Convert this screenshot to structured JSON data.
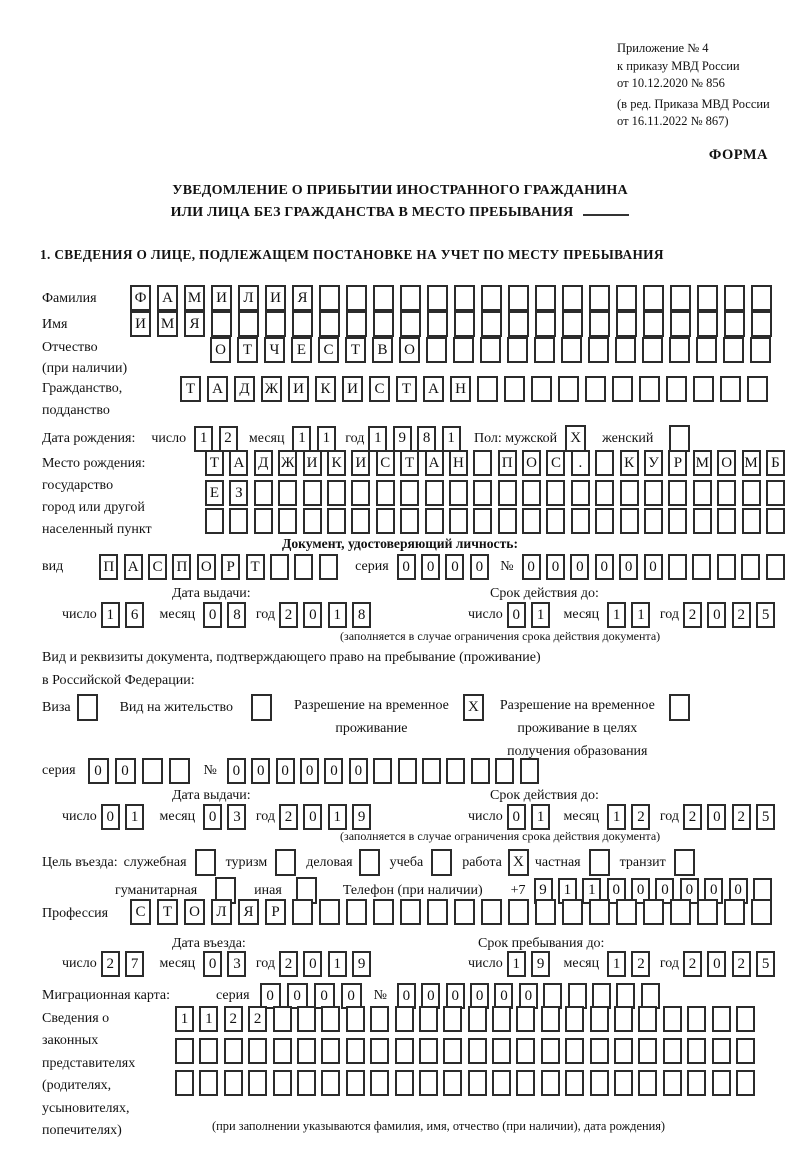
{
  "header": {
    "lines": [
      "Приложение № 4",
      "к приказу МВД России",
      "от 10.12.2020 № 856",
      "(в ред. Приказа МВД России",
      "от 16.11.2022 № 867)"
    ],
    "form_label": "ФОРМА"
  },
  "title": {
    "line1": "УВЕДОМЛЕНИЕ О ПРИБЫТИИ ИНОСТРАННОГО ГРАЖДАНИНА",
    "line2": "ИЛИ ЛИЦА БЕЗ ГРАЖДАНСТВА В МЕСТО ПРЕБЫВАНИЯ"
  },
  "section1_heading": "1. СВЕДЕНИЯ О ЛИЦЕ, ПОДЛЕЖАЩЕМ ПОСТАНОВКЕ НА УЧЕТ ПО МЕСТУ ПРЕБЫВАНИЯ",
  "words": {
    "day": "число",
    "month": "месяц",
    "year": "год",
    "series": "серия",
    "num": "№",
    "issue_heading": "Дата выдачи:",
    "valid_heading": "Срок действия до:",
    "restriction_note": "(заполняется в случае ограничения срока действия документа)"
  },
  "surname": {
    "label": "Фамилия",
    "cells": [
      "Ф",
      "А",
      "М",
      "И",
      "Л",
      "И",
      "Я",
      "",
      "",
      "",
      "",
      "",
      "",
      "",
      "",
      "",
      "",
      "",
      "",
      "",
      "",
      "",
      "",
      ""
    ]
  },
  "given_name": {
    "label": "Имя",
    "cells": [
      "И",
      "М",
      "Я",
      "",
      "",
      "",
      "",
      "",
      "",
      "",
      "",
      "",
      "",
      "",
      "",
      "",
      "",
      "",
      "",
      "",
      "",
      "",
      "",
      ""
    ]
  },
  "patronymic": {
    "label": "Отчество",
    "label2": "(при наличии)",
    "cells": [
      "О",
      "Т",
      "Ч",
      "Е",
      "С",
      "Т",
      "В",
      "О",
      "",
      "",
      "",
      "",
      "",
      "",
      "",
      "",
      "",
      "",
      "",
      "",
      ""
    ]
  },
  "citizenship": {
    "label": "Гражданство,",
    "label2": "подданство",
    "cells": [
      "Т",
      "А",
      "Д",
      "Ж",
      "И",
      "К",
      "И",
      "С",
      "Т",
      "А",
      "Н",
      "",
      "",
      "",
      "",
      "",
      "",
      "",
      "",
      "",
      "",
      ""
    ]
  },
  "birth": {
    "label": "Дата рождения:",
    "day": [
      "1",
      "2"
    ],
    "month": [
      "1",
      "1"
    ],
    "year": [
      "1",
      "9",
      "8",
      "1"
    ],
    "sex_label": "Пол: мужской",
    "male": "X",
    "female_label": "женский",
    "female": ""
  },
  "birth_place": {
    "label_lines": [
      "Место рождения:",
      "государство",
      "город или другой",
      "населенный пункт"
    ],
    "rows": [
      [
        "Т",
        "А",
        "Д",
        "Ж",
        "И",
        "К",
        "И",
        "С",
        "Т",
        "А",
        "Н",
        "",
        "П",
        "О",
        "С",
        ".",
        "",
        "К",
        "У",
        "Р",
        "М",
        "О",
        "М",
        "Б"
      ],
      [
        "Е",
        "З",
        "",
        "",
        "",
        "",
        "",
        "",
        "",
        "",
        "",
        "",
        "",
        "",
        "",
        "",
        "",
        "",
        "",
        "",
        "",
        "",
        "",
        ""
      ],
      [
        "",
        "",
        "",
        "",
        "",
        "",
        "",
        "",
        "",
        "",
        "",
        "",
        "",
        "",
        "",
        "",
        "",
        "",
        "",
        "",
        "",
        "",
        "",
        ""
      ]
    ]
  },
  "identity_doc": {
    "heading": "Документ, удостоверяющий личность:",
    "type_label": "вид",
    "type_cells": [
      "П",
      "А",
      "С",
      "П",
      "О",
      "Р",
      "Т",
      "",
      "",
      ""
    ],
    "series": [
      "0",
      "0",
      "0",
      "0"
    ],
    "number": [
      "0",
      "0",
      "0",
      "0",
      "0",
      "0",
      "",
      "",
      "",
      "",
      ""
    ],
    "issue": {
      "day": [
        "1",
        "6"
      ],
      "month": [
        "0",
        "8"
      ],
      "year": [
        "2",
        "0",
        "1",
        "8"
      ]
    },
    "valid": {
      "day": [
        "0",
        "1"
      ],
      "month": [
        "1",
        "1"
      ],
      "year": [
        "2",
        "0",
        "2",
        "5"
      ]
    }
  },
  "residence_doc": {
    "line1": "Вид и реквизиты документа, подтверждающего право на пребывание (проживание)",
    "line2": "в Российской Федерации:",
    "options": [
      {
        "label": "Виза",
        "value": ""
      },
      {
        "label": "Вид на жительство",
        "value": ""
      },
      {
        "label": "Разрешение на временное",
        "label2": "проживание",
        "value": "X"
      },
      {
        "label": "Разрешение на временное",
        "label2": "проживание в целях",
        "label3": "получения образования",
        "value": ""
      }
    ],
    "series": [
      "0",
      "0",
      "",
      ""
    ],
    "number": [
      "0",
      "0",
      "0",
      "0",
      "0",
      "0",
      "",
      "",
      "",
      "",
      "",
      "",
      ""
    ],
    "issue": {
      "day": [
        "0",
        "1"
      ],
      "month": [
        "0",
        "3"
      ],
      "year": [
        "2",
        "0",
        "1",
        "9"
      ]
    },
    "valid": {
      "day": [
        "0",
        "1"
      ],
      "month": [
        "1",
        "2"
      ],
      "year": [
        "2",
        "0",
        "2",
        "5"
      ]
    }
  },
  "purpose": {
    "label": "Цель въезда:",
    "options": [
      {
        "label": "служебная",
        "value": ""
      },
      {
        "label": "туризм",
        "value": ""
      },
      {
        "label": "деловая",
        "value": ""
      },
      {
        "label": "учеба",
        "value": ""
      },
      {
        "label": "работа",
        "value": "X"
      },
      {
        "label": "частная",
        "value": ""
      },
      {
        "label": "транзит",
        "value": ""
      },
      {
        "label": "гуманитарная",
        "value": ""
      },
      {
        "label": "иная",
        "value": ""
      }
    ],
    "phone_label": "Телефон (при наличии)",
    "phone_prefix": "+7",
    "phone_cells": [
      "9",
      "1",
      "1",
      "0",
      "0",
      "0",
      "0",
      "0",
      "0",
      ""
    ]
  },
  "profession": {
    "label": "Профессия",
    "cells": [
      "С",
      "Т",
      "О",
      "Л",
      "Я",
      "Р",
      "",
      "",
      "",
      "",
      "",
      "",
      "",
      "",
      "",
      "",
      "",
      "",
      "",
      "",
      "",
      "",
      "",
      ""
    ]
  },
  "entry": {
    "date_heading": "Дата въезда:",
    "stay_heading": "Срок пребывания до:",
    "date": {
      "day": [
        "2",
        "7"
      ],
      "month": [
        "0",
        "3"
      ],
      "year": [
        "2",
        "0",
        "1",
        "9"
      ]
    },
    "stay": {
      "day": [
        "1",
        "9"
      ],
      "month": [
        "1",
        "2"
      ],
      "year": [
        "2",
        "0",
        "2",
        "5"
      ]
    }
  },
  "migration_card": {
    "label": "Миграционная карта:",
    "series": [
      "0",
      "0",
      "0",
      "0"
    ],
    "number": [
      "0",
      "0",
      "0",
      "0",
      "0",
      "0",
      "",
      "",
      "",
      "",
      ""
    ]
  },
  "representatives": {
    "label_lines": [
      "Сведения о",
      "законных",
      "представителях",
      "(родителях,",
      "усыновителях,",
      "попечителях)"
    ],
    "rows": [
      [
        "1",
        "1",
        "2",
        "2",
        "",
        "",
        "",
        "",
        "",
        "",
        "",
        "",
        "",
        "",
        "",
        "",
        "",
        "",
        "",
        "",
        "",
        "",
        "",
        ""
      ],
      [
        "",
        "",
        "",
        "",
        "",
        "",
        "",
        "",
        "",
        "",
        "",
        "",
        "",
        "",
        "",
        "",
        "",
        "",
        "",
        "",
        "",
        "",
        "",
        ""
      ],
      [
        "",
        "",
        "",
        "",
        "",
        "",
        "",
        "",
        "",
        "",
        "",
        "",
        "",
        "",
        "",
        "",
        "",
        "",
        "",
        "",
        "",
        "",
        "",
        ""
      ]
    ],
    "note": "(при заполнении указываются фамилия, имя, отчество (при наличии), дата рождения)"
  }
}
